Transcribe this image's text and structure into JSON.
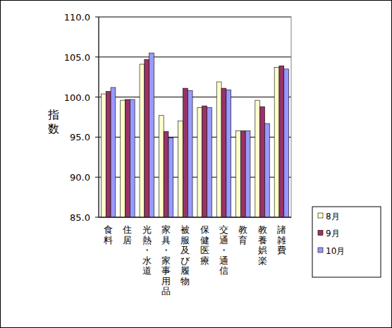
{
  "chart_data": {
    "type": "bar",
    "y_label": "指数",
    "categories": [
      "食料",
      "住居",
      "光熱・水道",
      "家具・家事用品",
      "被服及び履物",
      "保健医療",
      "交通・通信",
      "教育",
      "教養娯楽",
      "諸雑費"
    ],
    "series": [
      {
        "name": "8月",
        "color": "#ffffcc",
        "values": [
          100.4,
          99.6,
          104.1,
          97.7,
          97.0,
          98.7,
          101.9,
          95.8,
          99.6,
          103.7
        ]
      },
      {
        "name": "9月",
        "color": "#993366",
        "values": [
          100.7,
          99.7,
          104.7,
          95.7,
          101.1,
          98.9,
          101.1,
          95.8,
          98.8,
          103.9
        ]
      },
      {
        "name": "10月",
        "color": "#9999ff",
        "values": [
          101.2,
          99.7,
          105.5,
          94.9,
          100.8,
          98.7,
          100.9,
          95.8,
          96.7,
          103.5
        ]
      }
    ],
    "ylim": [
      85,
      110
    ],
    "yticks": [
      {
        "value": 85,
        "label": "85.0"
      },
      {
        "value": 90,
        "label": "90.0"
      },
      {
        "value": 95,
        "label": "95.0"
      },
      {
        "value": 100,
        "label": "100.0"
      },
      {
        "value": 105,
        "label": "105.0"
      },
      {
        "value": 110,
        "label": "110.0"
      }
    ],
    "grid": true,
    "legend": "right"
  }
}
